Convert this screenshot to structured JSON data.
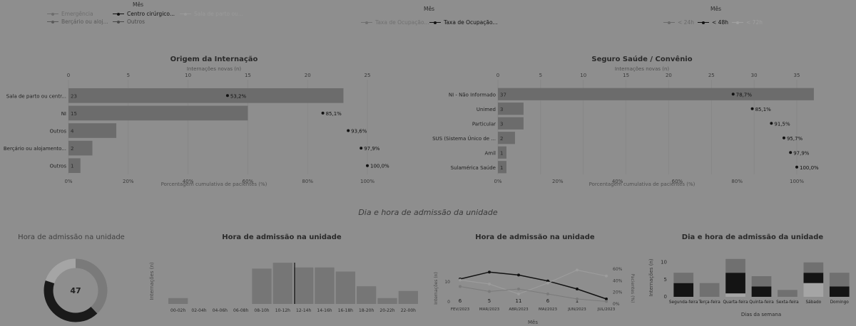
{
  "filters": {
    "origem_legend": {
      "title": "Mês",
      "items": [
        "Emergência",
        "Centro cirúrgico...",
        "Sala de parto ou...",
        "Berçário ou aloj...",
        "Outros"
      ],
      "colors": [
        "#6d6d6d",
        "#111111",
        "#9a9a9a",
        "#5a5a5a",
        "#4a4a4a"
      ]
    },
    "taxa_legend": {
      "title": "Mês",
      "items": [
        "Taxa de Ocupação...",
        "Taxa de Ocupação..."
      ],
      "colors": [
        "#707070",
        "#111111"
      ]
    },
    "hours_legend": {
      "title": "Mês",
      "items": [
        "< 24h",
        "< 48h",
        "< 72h"
      ],
      "colors": [
        "#6a6a6a",
        "#111111",
        "#a0a0a0"
      ]
    }
  },
  "origem": {
    "title": "Origem da Internação",
    "top_label": "Internações novas (n)",
    "bottom_label": "Porcentagem cumulativa de pacientes (%)",
    "top_ticks": [
      "0",
      "5",
      "10",
      "15",
      "20",
      "25"
    ],
    "bottom_ticks": [
      "0%",
      "20%",
      "40%",
      "60%",
      "80%",
      "100%"
    ],
    "categories": [
      "Sala de parto ou centr...",
      "NI",
      "Outros",
      "Berçário ou alojamento...",
      "Outros"
    ],
    "values": [
      23,
      15,
      4,
      2,
      1
    ],
    "value_labels": [
      "23",
      "15",
      "4",
      "2",
      "1"
    ],
    "cumulative": [
      53.2,
      85.1,
      93.6,
      97.9,
      100.0
    ],
    "cumulative_labels": [
      "53,2%",
      "85,1%",
      "93,6%",
      "97,9%",
      "100,0%"
    ]
  },
  "seguro": {
    "title": "Seguro Saúde / Convênio",
    "top_label": "Internações novas (n)",
    "bottom_label": "Porcentagem cumulativa de pacientes (%)",
    "top_ticks": [
      "0",
      "5",
      "10",
      "15",
      "20",
      "25",
      "30",
      "35"
    ],
    "bottom_ticks": [
      "0%",
      "20%",
      "40%",
      "60%",
      "80%",
      "100%"
    ],
    "categories": [
      "NI - Não Informado",
      "Unimed",
      "Particular",
      "SUS (Sistema Único de ...",
      "Amil",
      "Sulamérica Saúde"
    ],
    "values": [
      37,
      3,
      3,
      2,
      1,
      1
    ],
    "value_labels": [
      "37",
      "3",
      "3",
      "2",
      "1",
      "1"
    ],
    "cumulative": [
      78.7,
      85.1,
      91.5,
      95.7,
      97.9,
      100.0
    ],
    "cumulative_labels": [
      "78,7%",
      "85,1%",
      "91,5%",
      "95,7%",
      "97,9%",
      "100,0%"
    ]
  },
  "section_title": "Dia e hora de admissão da unidade",
  "donut": {
    "title": "Hora de admissão na unidade",
    "center": "47",
    "segments": [
      0.38,
      0.42,
      0.2
    ],
    "colors": [
      "#7a7a7a",
      "#1a1a1a",
      "#a5a5a5"
    ]
  },
  "histogram": {
    "title": "Hora de admissão na unidade",
    "ylabel": "Internações (n)",
    "categories": [
      "00-02h",
      "02-04h",
      "04-06h",
      "06-08h",
      "08-10h",
      "10-12h",
      "12-14h",
      "14-16h",
      "16-18h",
      "18-20h",
      "20-22h",
      "22-00h"
    ],
    "values": [
      1,
      0,
      0,
      0,
      6,
      7,
      6.2,
      6.2,
      5.5,
      3,
      1,
      2.2
    ],
    "marker_bin": 6
  },
  "trend": {
    "title": "Hora de admissão na unidade",
    "ylabel_left": "Internações (n)",
    "ylabel_right": "Pacientes (%)",
    "xlabel": "Mês",
    "months": [
      "FEV/2023",
      "MAR/2023",
      "ABR/2023",
      "MAI/2023",
      "JUN/2023",
      "JUL/2023"
    ],
    "bar_labels": [
      "6",
      "5",
      "11",
      "6",
      "1",
      "1"
    ],
    "right_ticks": [
      "0%",
      "20%",
      "40%",
      "60%"
    ],
    "left_ticks": [
      "10",
      "0"
    ],
    "series": [
      {
        "name": "",
        "values": [
          50,
          64,
          58,
          46,
          30,
          10
        ]
      },
      {
        "name": "",
        "values": [
          48,
          40,
          20,
          42,
          68,
          56
        ]
      },
      {
        "name": "",
        "values": [
          35,
          25,
          30,
          20,
          10,
          5
        ]
      }
    ]
  },
  "weekday": {
    "title": "Dia e hora de admissão da unidade",
    "ylabel": "Internações (n)",
    "xlabel": "Dias da semana",
    "yticks": [
      "0",
      "5",
      "10"
    ],
    "categories": [
      "Segunda-feira",
      "Terça-feira",
      "Quarta-feira",
      "Quinta-feira",
      "Sexta-feira",
      "Sábado",
      "Domingo"
    ],
    "stacks": [
      [
        0,
        4,
        3
      ],
      [
        0,
        0,
        4
      ],
      [
        1,
        6,
        4
      ],
      [
        0,
        3,
        3
      ],
      [
        0,
        0,
        2
      ],
      [
        4,
        3,
        3
      ],
      [
        0,
        3,
        4
      ]
    ],
    "colors": [
      "#a5a5a5",
      "#141414",
      "#707070"
    ]
  }
}
